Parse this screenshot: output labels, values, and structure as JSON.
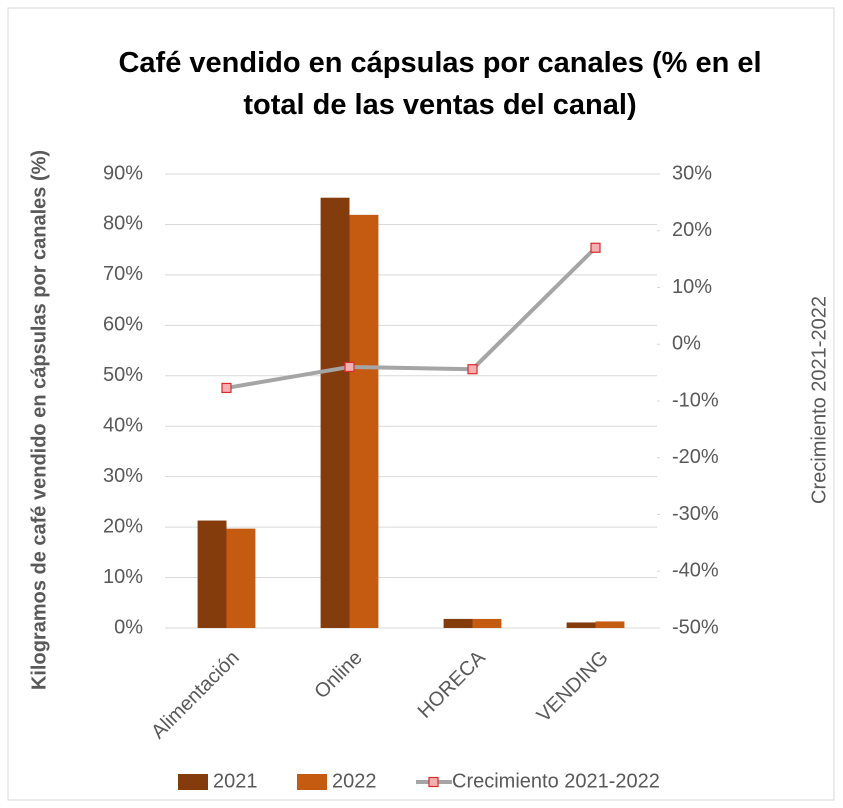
{
  "chart_data": {
    "type": "bar",
    "title": "Café vendido en cápsulas por canales (% en el total de las ventas del canal)",
    "ylabel": "Kilogramos de café vendido en cápsulas por canales (%)",
    "y2label": "Crecimiento  2021-2022",
    "categories": [
      "Alimentación",
      "Online",
      "HORECA",
      "VENDING"
    ],
    "series": [
      {
        "name": "2021",
        "type": "bar",
        "color": "#843c0c",
        "values": [
          21.3,
          85.3,
          1.8,
          1.1
        ]
      },
      {
        "name": "2022",
        "type": "bar",
        "color": "#c55a11",
        "values": [
          19.7,
          81.9,
          1.8,
          1.3
        ]
      },
      {
        "name": "Crecimiento 2021-2022",
        "type": "line",
        "axis": "y2",
        "color": "#a5a5a5",
        "values": [
          -7.7,
          -4.0,
          -4.4,
          17.0
        ]
      }
    ],
    "ylim": [
      0,
      90
    ],
    "yticks": [
      {
        "value": 0,
        "label": "0%"
      },
      {
        "value": 10,
        "label": "10%"
      },
      {
        "value": 20,
        "label": "20%"
      },
      {
        "value": 30,
        "label": "30%"
      },
      {
        "value": 40,
        "label": "40%"
      },
      {
        "value": 50,
        "label": "50%"
      },
      {
        "value": 60,
        "label": "60%"
      },
      {
        "value": 70,
        "label": "70%"
      },
      {
        "value": 80,
        "label": "80%"
      },
      {
        "value": 90,
        "label": "90%"
      }
    ],
    "y2lim": [
      -50,
      30
    ],
    "y2ticks": [
      {
        "value": -50,
        "label": "-50%"
      },
      {
        "value": -40,
        "label": "-40%"
      },
      {
        "value": -30,
        "label": "-30%"
      },
      {
        "value": -20,
        "label": "-20%"
      },
      {
        "value": -10,
        "label": "-10%"
      },
      {
        "value": 0,
        "label": "0%"
      },
      {
        "value": 10,
        "label": "10%"
      },
      {
        "value": 20,
        "label": "20%"
      },
      {
        "value": 30,
        "label": "30%"
      }
    ],
    "grid": true,
    "legend": "bottom"
  }
}
